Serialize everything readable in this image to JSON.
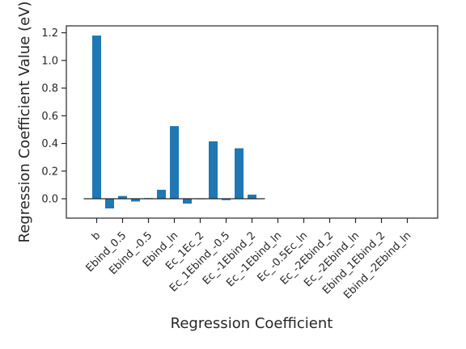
{
  "chart_data": {
    "type": "bar",
    "title": "",
    "xlabel": "Regression Coefficient",
    "ylabel": "Regression Coefficient Value (eV)",
    "ylim": [
      -0.14,
      1.25
    ],
    "yticks": [
      0.0,
      0.2,
      0.4,
      0.6,
      0.8,
      1.0,
      1.2
    ],
    "ytick_labels": [
      "0.0",
      "0.2",
      "0.4",
      "0.6",
      "0.8",
      "1.0",
      "1.2"
    ],
    "grid": false,
    "zero_line": true,
    "bar_color": "#1f77b4",
    "axis_color": "#262626",
    "bars": [
      {
        "label": "b",
        "value": 1.18
      },
      {
        "label": "",
        "value": -0.07
      },
      {
        "label": "Ebind_0.5",
        "value": 0.02
      },
      {
        "label": "",
        "value": -0.02
      },
      {
        "label": "Ebind_-0.5",
        "value": 0.005
      },
      {
        "label": "",
        "value": 0.065
      },
      {
        "label": "Ebind_ln",
        "value": 0.525
      },
      {
        "label": "",
        "value": -0.035
      },
      {
        "label": "Ec_1Ec_2",
        "value": 0.0
      },
      {
        "label": "",
        "value": 0.415
      },
      {
        "label": "Ec_1Ebind_-0.5",
        "value": -0.01
      },
      {
        "label": "",
        "value": 0.365
      },
      {
        "label": "Ec_-1Ebind_2",
        "value": 0.03
      }
    ],
    "x_tick_labels": [
      "b",
      "Ebind_0.5",
      "Ebind_-0.5",
      "Ebind_ln",
      "Ec_1Ec_2",
      "Ec_1Ebind_-0.5",
      "Ec_-1Ebind_2",
      "Ec_-1Ebind_ln",
      "Ec_-0.5Ec_ln",
      "Ec_-2Ebind_2",
      "Ec_-2Ebind_ln",
      "Ebind_1Ebind_2",
      "Ebind_-2Ebind_ln"
    ]
  }
}
